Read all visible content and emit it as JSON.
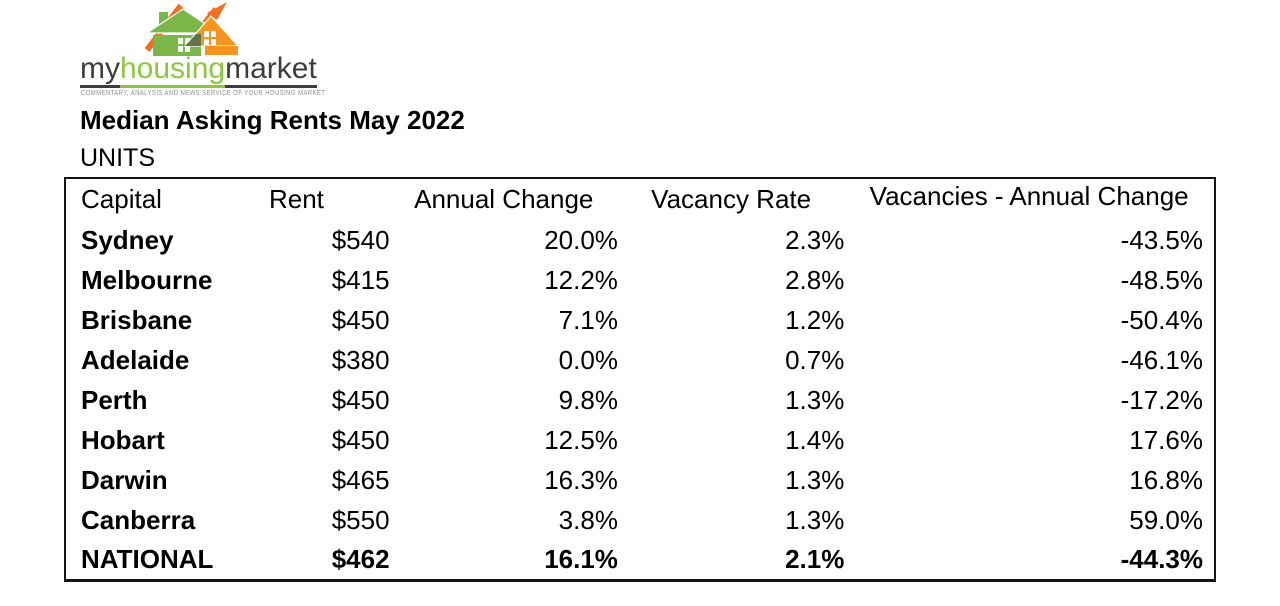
{
  "logo": {
    "brand_my": "my",
    "brand_housing": "housing",
    "brand_market": "market",
    "tagline": "COMMENTARY, ANALYSIS AND NEWS SERVICE OF YOUR HOUSING MARKET",
    "colors": {
      "green": "#7AB648",
      "house_orange": "#F7941D",
      "arrow_orange": "#F26F21",
      "overlap_olive": "#66724E",
      "dark": "#3D3D3D",
      "wordmark_green": "#8DC63F"
    }
  },
  "header": {
    "title": "Median Asking Rents May 2022",
    "subtitle": "UNITS"
  },
  "table": {
    "columns": [
      "Capital",
      "Rent",
      "Annual Change",
      "Vacancy Rate",
      "Vacancies - Annual Change"
    ],
    "rows": [
      {
        "capital": "Sydney",
        "rent": "$540",
        "annual_change": "20.0%",
        "vacancy_rate": "2.3%",
        "vacancies_annual_change": "-43.5%",
        "emphasis": false
      },
      {
        "capital": "Melbourne",
        "rent": "$415",
        "annual_change": "12.2%",
        "vacancy_rate": "2.8%",
        "vacancies_annual_change": "-48.5%",
        "emphasis": false
      },
      {
        "capital": "Brisbane",
        "rent": "$450",
        "annual_change": "7.1%",
        "vacancy_rate": "1.2%",
        "vacancies_annual_change": "-50.4%",
        "emphasis": false
      },
      {
        "capital": "Adelaide",
        "rent": "$380",
        "annual_change": "0.0%",
        "vacancy_rate": "0.7%",
        "vacancies_annual_change": "-46.1%",
        "emphasis": false
      },
      {
        "capital": "Perth",
        "rent": "$450",
        "annual_change": "9.8%",
        "vacancy_rate": "1.3%",
        "vacancies_annual_change": "-17.2%",
        "emphasis": false
      },
      {
        "capital": "Hobart",
        "rent": "$450",
        "annual_change": "12.5%",
        "vacancy_rate": "1.4%",
        "vacancies_annual_change": "17.6%",
        "emphasis": false
      },
      {
        "capital": "Darwin",
        "rent": "$465",
        "annual_change": "16.3%",
        "vacancy_rate": "1.3%",
        "vacancies_annual_change": "16.8%",
        "emphasis": false
      },
      {
        "capital": "Canberra",
        "rent": "$550",
        "annual_change": "3.8%",
        "vacancy_rate": "1.3%",
        "vacancies_annual_change": "59.0%",
        "emphasis": false
      },
      {
        "capital": "NATIONAL",
        "rent": "$462",
        "annual_change": "16.1%",
        "vacancy_rate": "2.1%",
        "vacancies_annual_change": "-44.3%",
        "emphasis": true
      }
    ]
  }
}
